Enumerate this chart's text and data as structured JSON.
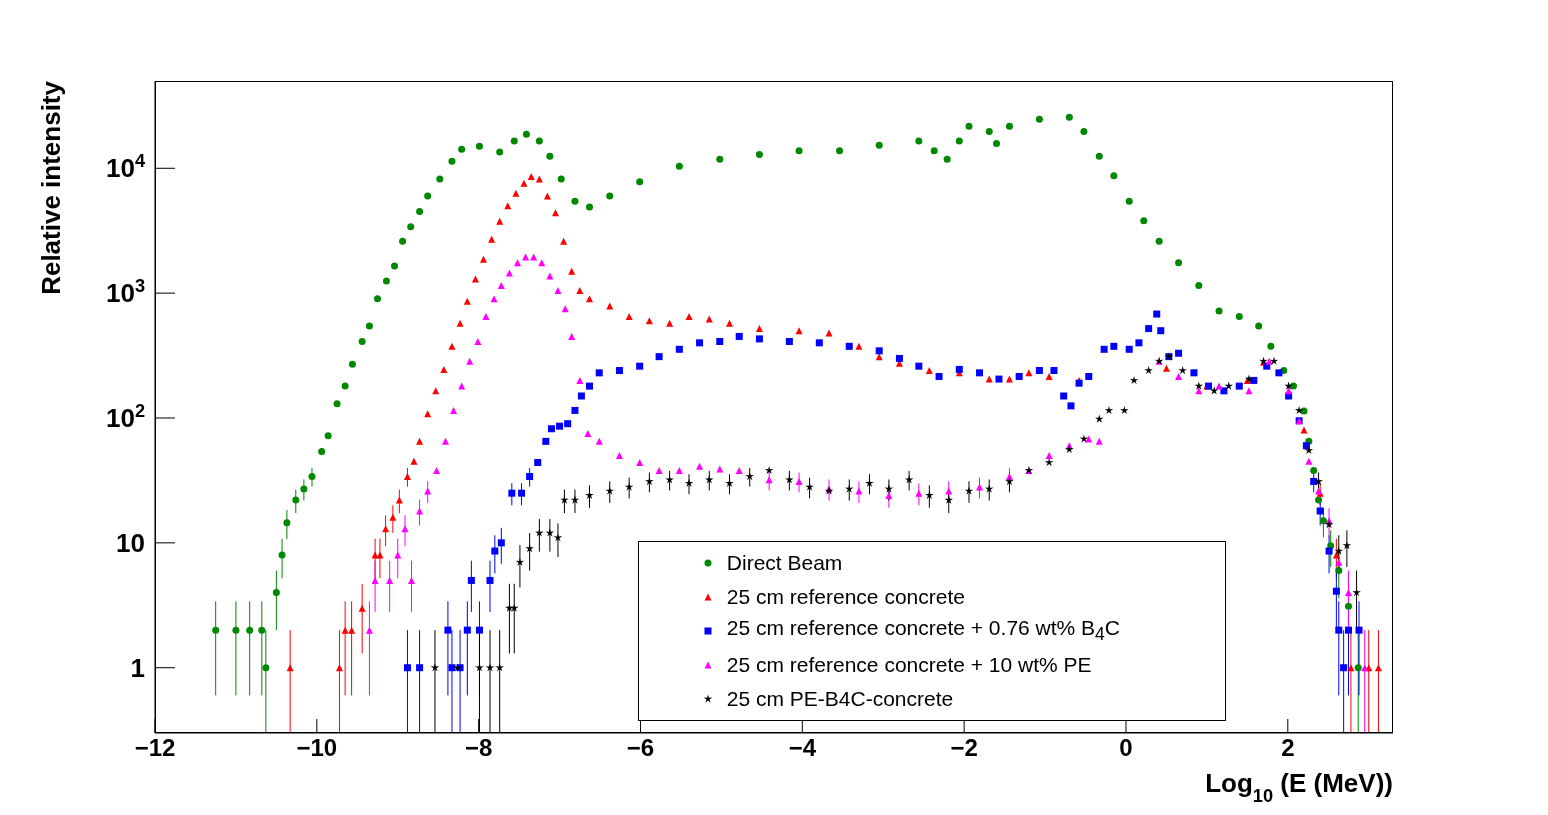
{
  "chart_data": {
    "type": "scatter",
    "xlabel": "Log$_{10}$(E (MeV))",
    "ylabel": "Relative intensity",
    "log": "y",
    "xlim": [
      -12,
      3.3
    ],
    "ylim": [
      0.3,
      50000
    ],
    "xticks": [
      -12,
      -10,
      -8,
      -6,
      -4,
      -2,
      0,
      2
    ],
    "yticks": [
      1,
      10,
      {
        "value": 100,
        "label": "10$^{2}$"
      },
      {
        "value": 1000,
        "label": "10$^{3}$"
      },
      {
        "value": 10000,
        "label": "10$^{4}$"
      }
    ],
    "grid": false,
    "legend": "bottom",
    "series": [
      {
        "name": "Direct Beam",
        "color": "#008800",
        "marker": "circle",
        "x": [
          -11.25,
          -11.0,
          -10.83,
          -10.68,
          -10.63,
          -10.5,
          -10.43,
          -10.37,
          -10.26,
          -10.16,
          -10.06,
          -9.94,
          -9.86,
          -9.75,
          -9.65,
          -9.56,
          -9.44,
          -9.35,
          -9.25,
          -9.14,
          -9.04,
          -8.94,
          -8.84,
          -8.73,
          -8.63,
          -8.48,
          -8.33,
          -8.21,
          -7.99,
          -7.74,
          -7.56,
          -7.41,
          -7.25,
          -7.12,
          -6.98,
          -6.81,
          -6.63,
          -6.38,
          -6.01,
          -5.52,
          -5.02,
          -4.53,
          -4.04,
          -3.54,
          -3.05,
          -2.56,
          -2.37,
          -2.21,
          -2.06,
          -1.94,
          -1.69,
          -1.6,
          -1.44,
          -1.07,
          -0.7,
          -0.52,
          -0.33,
          -0.15,
          0.04,
          0.22,
          0.41,
          0.65,
          0.9,
          1.15,
          1.4,
          1.64,
          1.79,
          1.95,
          2.07,
          2.2,
          2.26,
          2.32,
          2.38,
          2.44,
          2.53,
          2.63,
          2.75,
          2.87
        ],
        "values": [
          2,
          2,
          2,
          2,
          1,
          4,
          8,
          14.5,
          22,
          27,
          34,
          54,
          72,
          130,
          180,
          270,
          410,
          545,
          900,
          1250,
          1650,
          2600,
          3400,
          4500,
          6000,
          8200,
          11400,
          14200,
          15000,
          13500,
          16500,
          18700,
          16500,
          12500,
          8200,
          5450,
          4900,
          6000,
          7800,
          10400,
          11800,
          12900,
          13800,
          13800,
          15300,
          16500,
          13800,
          11800,
          16500,
          21700,
          19700,
          15800,
          21700,
          24700,
          25600,
          19700,
          12500,
          8700,
          5450,
          3800,
          2600,
          1750,
          1150,
          720,
          650,
          545,
          375,
          240,
          180,
          114,
          65,
          38,
          22,
          15,
          9.5,
          6,
          3.1,
          1
        ],
        "errors": [
          1.4,
          1.4,
          1.4,
          1.4,
          [
            0.3,
            2
          ],
          2,
          2.8,
          3.8,
          4.7,
          5.2,
          5.8,
          null,
          null,
          null,
          null,
          null,
          null,
          null,
          null,
          null,
          null,
          null,
          null,
          null,
          null,
          null,
          null,
          null,
          null,
          null,
          null,
          null,
          null,
          null,
          null,
          null,
          null,
          null,
          null,
          null,
          null,
          null,
          null,
          null,
          null,
          null,
          null,
          null,
          null,
          null,
          null,
          null,
          null,
          null,
          null,
          null,
          null,
          null,
          null,
          null,
          null,
          null,
          null,
          null,
          null,
          null,
          null,
          null,
          null,
          null,
          null,
          null,
          null,
          3.9,
          3.1,
          2.4,
          null,
          [
            0.3,
            2
          ]
        ]
      },
      {
        "name": "25 cm reference concrete",
        "color": "#ff0000",
        "marker": "triangle",
        "x": [
          -10.33,
          -9.72,
          -9.65,
          -9.57,
          -9.44,
          -9.28,
          -9.22,
          -9.15,
          -9.06,
          -8.98,
          -8.88,
          -8.8,
          -8.73,
          -8.63,
          -8.53,
          -8.43,
          -8.33,
          -8.23,
          -8.14,
          -8.04,
          -7.94,
          -7.84,
          -7.74,
          -7.64,
          -7.54,
          -7.44,
          -7.35,
          -7.25,
          -7.15,
          -7.05,
          -6.95,
          -6.85,
          -6.75,
          -6.63,
          -6.38,
          -6.14,
          -5.89,
          -5.64,
          -5.4,
          -5.15,
          -4.9,
          -4.53,
          -4.04,
          -3.67,
          -3.3,
          -3.05,
          -2.8,
          -2.43,
          -2.06,
          -1.69,
          -1.44,
          -1.2,
          -0.95,
          -0.58,
          0.5,
          1.0,
          1.5,
          1.7,
          2.0,
          2.2,
          2.4,
          2.6,
          2.78,
          3.0,
          3.12
        ],
        "values": [
          1,
          1,
          2,
          2,
          3,
          8,
          8,
          13,
          16,
          22,
          34,
          45,
          65,
          108,
          165,
          245,
          375,
          575,
          860,
          1300,
          1870,
          2700,
          3770,
          5000,
          6300,
          7600,
          8600,
          8200,
          6000,
          4400,
          2600,
          1500,
          1050,
          900,
          790,
          650,
          600,
          575,
          650,
          620,
          575,
          520,
          500,
          480,
          375,
          310,
          275,
          240,
          230,
          205,
          205,
          230,
          215,
          200,
          250,
          180,
          200,
          280,
          null,
          80,
          25,
          8,
          1,
          1,
          1
        ],
        "errors": [
          [
            0.3,
            2
          ],
          [
            0.3,
            2
          ],
          1.4,
          1.4,
          1.7,
          2.8,
          2.8,
          3.6,
          4,
          4.7,
          5.8,
          null,
          null,
          null,
          null,
          null,
          null,
          null,
          null,
          null,
          null,
          null,
          null,
          null,
          null,
          null,
          null,
          null,
          null,
          null,
          null,
          null,
          null,
          null,
          null,
          null,
          null,
          null,
          null,
          null,
          null,
          null,
          null,
          null,
          null,
          null,
          null,
          null,
          null,
          null,
          null,
          null,
          null,
          null,
          null,
          null,
          null,
          null,
          null,
          null,
          5,
          2.8,
          [
            0.3,
            2
          ],
          [
            0.3,
            2
          ],
          [
            0.3,
            2
          ]
        ]
      },
      {
        "name": "25 cm reference concrete + 0.76 wt% B$_{4}$C",
        "color": "#0000ff",
        "marker": "square",
        "x": [
          -8.88,
          -8.73,
          -8.38,
          -8.33,
          -8.23,
          -8.14,
          -8.09,
          -7.99,
          -7.86,
          -7.8,
          -7.72,
          -7.59,
          -7.47,
          -7.37,
          -7.27,
          -7.17,
          -7.1,
          -7.0,
          -6.9,
          -6.81,
          -6.73,
          -6.63,
          -6.51,
          -6.26,
          -6.01,
          -5.77,
          -5.52,
          -5.27,
          -5.02,
          -4.78,
          -4.53,
          -4.16,
          -3.79,
          -3.42,
          -3.05,
          -2.8,
          -2.56,
          -2.31,
          -2.06,
          -1.81,
          -1.57,
          -1.32,
          -1.07,
          -0.89,
          -0.77,
          -0.68,
          -0.58,
          -0.46,
          -0.27,
          -0.15,
          0.04,
          0.16,
          0.28,
          0.38,
          0.43,
          0.53,
          0.65,
          0.84,
          1.02,
          1.21,
          1.4,
          1.58,
          1.74,
          1.89,
          2.01,
          2.14,
          2.23,
          2.32,
          2.4,
          2.51,
          2.6,
          2.63,
          2.69,
          2.75,
          2.88
        ],
        "values": [
          1,
          1,
          2,
          1,
          1,
          2,
          5,
          2,
          5,
          8.6,
          10,
          25,
          25,
          34,
          44,
          65,
          82,
          86,
          90,
          115,
          150,
          180,
          230,
          240,
          260,
          310,
          355,
          400,
          410,
          450,
          430,
          410,
          400,
          375,
          345,
          300,
          260,
          215,
          245,
          230,
          205,
          215,
          240,
          240,
          150,
          125,
          190,
          215,
          355,
          375,
          355,
          400,
          520,
          680,
          500,
          310,
          330,
          230,
          180,
          165,
          180,
          200,
          260,
          230,
          150,
          95,
          60,
          31,
          18,
          8.6,
          4.1,
          2,
          1,
          2,
          2
        ],
        "errors": [
          [
            0.3,
            2
          ],
          [
            0.3,
            2
          ],
          1.4,
          [
            0.3,
            2
          ],
          [
            0.3,
            2
          ],
          1.4,
          2.2,
          1.4,
          2.2,
          2.9,
          3.2,
          5,
          5,
          5.8,
          null,
          null,
          null,
          null,
          null,
          null,
          null,
          null,
          null,
          null,
          null,
          null,
          null,
          null,
          null,
          null,
          null,
          null,
          null,
          null,
          null,
          null,
          null,
          null,
          null,
          null,
          null,
          null,
          null,
          null,
          null,
          null,
          null,
          null,
          null,
          null,
          null,
          null,
          null,
          null,
          null,
          null,
          null,
          null,
          null,
          null,
          null,
          null,
          null,
          null,
          null,
          null,
          null,
          5.6,
          4.2,
          2.9,
          2,
          1.4,
          [
            0.3,
            2
          ],
          1.4,
          1.4
        ]
      },
      {
        "name": "25 cm reference concrete + 10 wt% PE",
        "color": "#ff00ff",
        "marker": "triangle",
        "x": [
          -9.35,
          -9.28,
          -9.1,
          -9.0,
          -8.91,
          -8.83,
          -8.73,
          -8.63,
          -8.52,
          -8.41,
          -8.31,
          -8.21,
          -8.11,
          -8.01,
          -7.91,
          -7.81,
          -7.72,
          -7.62,
          -7.52,
          -7.42,
          -7.32,
          -7.22,
          -7.12,
          -7.02,
          -6.93,
          -6.85,
          -6.75,
          -6.65,
          -6.51,
          -6.26,
          -6.01,
          -5.77,
          -5.52,
          -5.27,
          -5.02,
          -4.78,
          -4.41,
          -4.04,
          -3.67,
          -3.3,
          -2.93,
          -2.56,
          -2.19,
          -1.81,
          -1.44,
          -1.2,
          -0.95,
          -0.7,
          -0.46,
          -0.33,
          0.41,
          0.65,
          0.9,
          1.15,
          1.52,
          1.77,
          2.01,
          2.14,
          2.26,
          2.38,
          2.51,
          2.63,
          2.75,
          2.95
        ],
        "values": [
          2,
          5,
          5,
          8,
          13,
          5,
          18,
          26,
          38,
          65,
          115,
          180,
          285,
          410,
          650,
          900,
          1150,
          1450,
          1750,
          1950,
          1950,
          1750,
          1370,
          1050,
          750,
          450,
          200,
          75,
          65,
          50,
          44,
          38,
          38,
          41,
          39,
          38,
          32,
          31,
          27,
          26,
          24,
          25,
          26,
          28,
          34,
          38,
          50,
          60,
          68,
          65,
          285,
          215,
          165,
          180,
          165,
          285,
          165,
          95,
          45,
          26,
          15,
          7,
          4,
          1
        ],
        "errors": [
          1.4,
          2.2,
          2.2,
          2.8,
          3.6,
          2.2,
          4.2,
          5.1,
          null,
          null,
          null,
          null,
          null,
          null,
          null,
          null,
          null,
          null,
          null,
          null,
          null,
          null,
          null,
          null,
          null,
          null,
          null,
          null,
          null,
          null,
          null,
          null,
          null,
          null,
          null,
          null,
          5.7,
          5.6,
          5.2,
          5.1,
          4.9,
          5,
          5.1,
          5.3,
          5.8,
          null,
          null,
          null,
          null,
          null,
          null,
          null,
          null,
          null,
          null,
          null,
          null,
          null,
          null,
          null,
          3.9,
          null,
          2,
          [
            0.3,
            2
          ]
        ]
      },
      {
        "name": "25 cm PE-B4C-concrete",
        "color": "#000000",
        "marker": "star",
        "x": [
          -8.54,
          -8.26,
          -7.99,
          -7.86,
          -7.74,
          -7.62,
          -7.56,
          -7.49,
          -7.37,
          -7.25,
          -7.12,
          -7.02,
          -6.94,
          -6.81,
          -6.63,
          -6.38,
          -6.14,
          -5.89,
          -5.64,
          -5.4,
          -5.15,
          -4.9,
          -4.65,
          -4.41,
          -4.16,
          -3.91,
          -3.67,
          -3.42,
          -3.17,
          -2.93,
          -2.68,
          -2.43,
          -2.19,
          -1.94,
          -1.69,
          -1.44,
          -1.2,
          -0.95,
          -0.7,
          -0.52,
          -0.33,
          -0.21,
          -0.02,
          0.1,
          0.28,
          0.41,
          0.53,
          0.7,
          0.9,
          1.09,
          1.27,
          1.52,
          1.7,
          1.83,
          2.01,
          2.14,
          2.26,
          2.38,
          2.51,
          2.63,
          2.73,
          2.85
        ],
        "values": [
          1,
          1,
          1,
          1,
          1,
          3,
          3,
          7,
          9,
          12,
          12,
          11,
          22,
          22,
          24,
          26,
          28,
          31,
          32,
          30,
          32,
          30,
          34,
          38,
          32,
          28,
          26,
          27,
          30,
          27,
          32,
          24,
          22,
          26,
          27,
          31,
          38,
          44,
          56,
          68,
          98,
          115,
          115,
          200,
          240,
          285,
          310,
          240,
          180,
          165,
          180,
          205,
          285,
          285,
          180,
          115,
          55,
          31,
          14,
          8.6,
          9.5,
          4
        ],
        "errors": [
          [
            0.3,
            2
          ],
          null,
          [
            0.3,
            2
          ],
          [
            0.3,
            2
          ],
          [
            0.3,
            2
          ],
          1.7,
          1.7,
          2.6,
          3,
          3.5,
          3.5,
          3.3,
          4.7,
          4.7,
          4.9,
          5.1,
          5.3,
          5.6,
          5.7,
          5.5,
          5.7,
          5.5,
          5.8,
          null,
          5.7,
          5.3,
          null,
          5.2,
          5.5,
          5.2,
          5.7,
          4.9,
          4.7,
          5.1,
          5.2,
          5.6,
          null,
          null,
          null,
          null,
          null,
          null,
          null,
          null,
          null,
          null,
          null,
          null,
          null,
          null,
          null,
          null,
          null,
          null,
          null,
          null,
          null,
          5.6,
          null,
          2.9,
          3.1,
          2
        ]
      }
    ]
  }
}
